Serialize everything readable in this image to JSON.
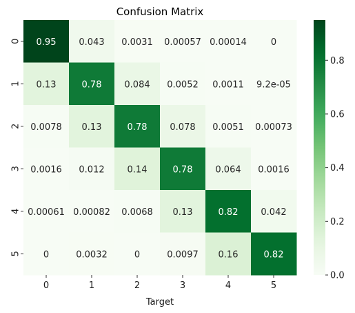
{
  "chart_data": {
    "type": "heatmap",
    "title": "Confusion Matrix",
    "xlabel": "Target",
    "ylabel": "",
    "x_categories": [
      "0",
      "1",
      "2",
      "3",
      "4",
      "5"
    ],
    "y_categories": [
      "0",
      "1",
      "2",
      "3",
      "4",
      "5"
    ],
    "values": [
      [
        0.95,
        0.043,
        0.0031,
        0.00057,
        0.00014,
        0
      ],
      [
        0.13,
        0.78,
        0.084,
        0.0052,
        0.0011,
        9.2e-05
      ],
      [
        0.0078,
        0.13,
        0.78,
        0.078,
        0.0051,
        0.00073
      ],
      [
        0.0016,
        0.012,
        0.14,
        0.78,
        0.064,
        0.0016
      ],
      [
        0.00061,
        0.00082,
        0.0068,
        0.13,
        0.82,
        0.042
      ],
      [
        0,
        0.0032,
        0,
        0.0097,
        0.16,
        0.82
      ]
    ],
    "cell_labels": [
      [
        "0.95",
        "0.043",
        "0.0031",
        "0.00057",
        "0.00014",
        "0"
      ],
      [
        "0.13",
        "0.78",
        "0.084",
        "0.0052",
        "0.0011",
        "9.2e-05"
      ],
      [
        "0.0078",
        "0.13",
        "0.78",
        "0.078",
        "0.0051",
        "0.00073"
      ],
      [
        "0.0016",
        "0.012",
        "0.14",
        "0.78",
        "0.064",
        "0.0016"
      ],
      [
        "0.00061",
        "0.00082",
        "0.0068",
        "0.13",
        "0.82",
        "0.042"
      ],
      [
        "0",
        "0.0032",
        "0",
        "0.0097",
        "0.16",
        "0.82"
      ]
    ],
    "colorscale": "Greens",
    "color_min": "#f7fcf5",
    "color_max": "#00441b",
    "vmin": 0,
    "vmax": 0.95,
    "colorbar_ticks": [
      0.0,
      0.2,
      0.4,
      0.6,
      0.8
    ],
    "colorbar_tick_labels": [
      "0.0",
      "0.2",
      "0.4",
      "0.6",
      "0.8"
    ],
    "grid": false,
    "legend": "colorbar-right"
  }
}
